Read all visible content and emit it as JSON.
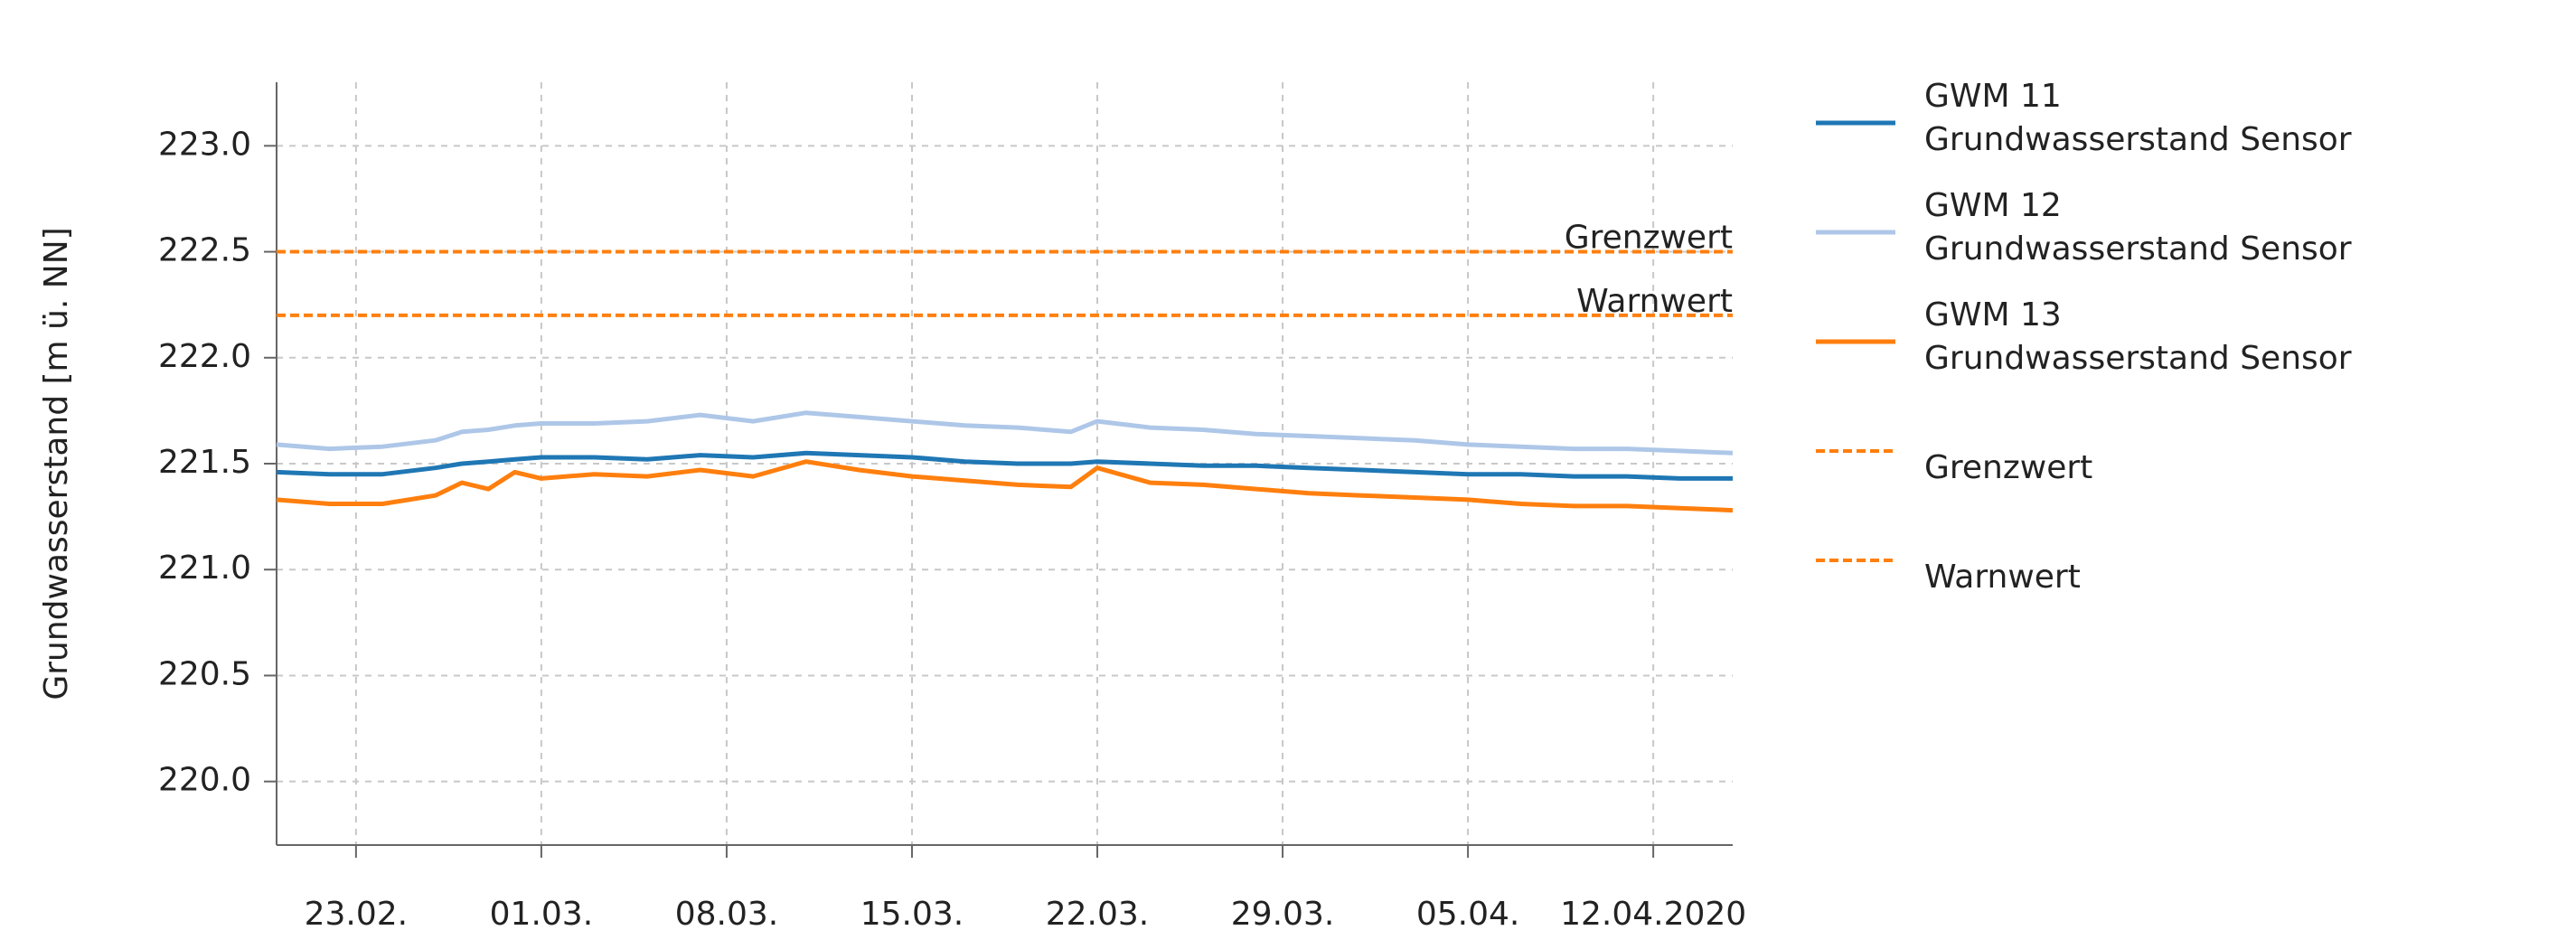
{
  "chart_data": {
    "type": "line",
    "ylabel": "Grundwasserstand [m ü. NN]",
    "x": [
      "2020-02-20",
      "2020-02-22",
      "2020-02-24",
      "2020-02-26",
      "2020-02-27",
      "2020-02-28",
      "2020-02-29",
      "2020-03-01",
      "2020-03-03",
      "2020-03-05",
      "2020-03-07",
      "2020-03-09",
      "2020-03-11",
      "2020-03-13",
      "2020-03-15",
      "2020-03-17",
      "2020-03-19",
      "2020-03-21",
      "2020-03-22",
      "2020-03-24",
      "2020-03-26",
      "2020-03-28",
      "2020-03-30",
      "2020-04-01",
      "2020-04-03",
      "2020-04-05",
      "2020-04-07",
      "2020-04-09",
      "2020-04-11",
      "2020-04-13",
      "2020-04-15"
    ],
    "series": [
      {
        "name": "GWM 11\nGrundwasserstand Sensor",
        "color": "#1f77b4",
        "values": [
          221.46,
          221.45,
          221.45,
          221.48,
          221.5,
          221.51,
          221.52,
          221.53,
          221.53,
          221.52,
          221.54,
          221.53,
          221.55,
          221.54,
          221.53,
          221.51,
          221.5,
          221.5,
          221.51,
          221.5,
          221.49,
          221.49,
          221.48,
          221.47,
          221.46,
          221.45,
          221.45,
          221.44,
          221.44,
          221.43,
          221.43
        ]
      },
      {
        "name": "GWM 12\nGrundwasserstand Sensor",
        "color": "#aec7e8",
        "values": [
          221.59,
          221.57,
          221.58,
          221.61,
          221.65,
          221.66,
          221.68,
          221.69,
          221.69,
          221.7,
          221.73,
          221.7,
          221.74,
          221.72,
          221.7,
          221.68,
          221.67,
          221.65,
          221.7,
          221.67,
          221.66,
          221.64,
          221.63,
          221.62,
          221.61,
          221.59,
          221.58,
          221.57,
          221.57,
          221.56,
          221.55
        ]
      },
      {
        "name": "GWM 13\nGrundwasserstand Sensor",
        "color": "#ff7f0e",
        "values": [
          221.33,
          221.31,
          221.31,
          221.35,
          221.41,
          221.38,
          221.46,
          221.43,
          221.45,
          221.44,
          221.47,
          221.44,
          221.51,
          221.47,
          221.44,
          221.42,
          221.4,
          221.39,
          221.48,
          221.41,
          221.4,
          221.38,
          221.36,
          221.35,
          221.34,
          221.33,
          221.31,
          221.3,
          221.3,
          221.29,
          221.28
        ]
      }
    ],
    "thresholds": [
      {
        "name": "Grenzwert",
        "value": 222.5,
        "color": "#ff7f0e"
      },
      {
        "name": "Warnwert",
        "value": 222.2,
        "color": "#ff7f0e"
      }
    ],
    "xlim": [
      "2020-02-20",
      "2020-04-15"
    ],
    "xticks": [
      {
        "value": "2020-02-23",
        "label": "23.02."
      },
      {
        "value": "2020-03-01",
        "label": "01.03."
      },
      {
        "value": "2020-03-08",
        "label": "08.03."
      },
      {
        "value": "2020-03-15",
        "label": "15.03."
      },
      {
        "value": "2020-03-22",
        "label": "22.03."
      },
      {
        "value": "2020-03-29",
        "label": "29.03."
      },
      {
        "value": "2020-04-05",
        "label": "05.04."
      },
      {
        "value": "2020-04-12",
        "label": "12.04.2020"
      }
    ],
    "ylim": [
      219.7,
      223.3
    ],
    "yticks": [
      {
        "value": 220,
        "label": "220.0"
      },
      220.5,
      {
        "value": 221,
        "label": "221.0"
      },
      221.5,
      {
        "value": 222,
        "label": "222.0"
      },
      222.5,
      {
        "value": 223,
        "label": "223.0"
      }
    ],
    "grid": true,
    "legend": "outside-right"
  }
}
